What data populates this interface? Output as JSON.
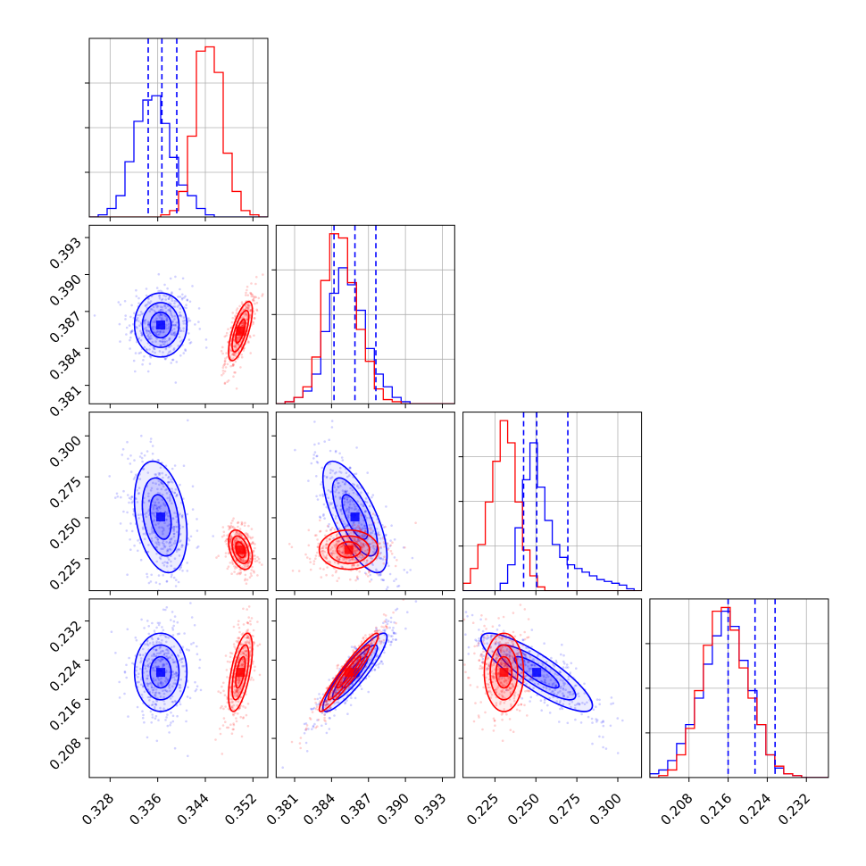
{
  "chart_data": {
    "type": "corner",
    "title": "",
    "grid": true,
    "parameters": [
      {
        "ticks": [
          0.328,
          0.336,
          0.344,
          0.352
        ],
        "tick_labels": [
          "0.328",
          "0.336",
          "0.344",
          "0.352"
        ],
        "range": [
          0.3245,
          0.3545
        ]
      },
      {
        "ticks": [
          0.381,
          0.384,
          0.387,
          0.39,
          0.393
        ],
        "tick_labels": [
          "0.381",
          "0.384",
          "0.387",
          "0.390",
          "0.393"
        ],
        "range": [
          0.3795,
          0.394
        ]
      },
      {
        "ticks": [
          0.225,
          0.25,
          0.275,
          0.3
        ],
        "tick_labels": [
          "0.225",
          "0.250",
          "0.275",
          "0.300"
        ],
        "range": [
          0.2055,
          0.3145
        ]
      },
      {
        "ticks": [
          0.208,
          0.216,
          0.224,
          0.232
        ],
        "tick_labels": [
          "0.208",
          "0.216",
          "0.224",
          "0.232"
        ],
        "range": [
          0.2,
          0.2365
        ]
      }
    ],
    "series": [
      {
        "color": "#0000ff",
        "means": [
          0.3365,
          0.3859,
          0.2505,
          0.2215
        ],
        "sds": [
          0.0022,
          0.0013,
          0.017,
          0.004
        ],
        "quantiles": [
          [
            0.3344,
            0.3367,
            0.3392
          ],
          [
            0.3842,
            0.3859,
            0.3876
          ],
          [
            0.2425,
            0.2505,
            0.2695
          ],
          [
            0.216,
            0.2215,
            0.2256
          ]
        ],
        "correlations": [
          [
            1,
            0,
            -0.3,
            0
          ],
          [
            0,
            1,
            -0.7,
            0.9
          ],
          [
            -0.3,
            -0.7,
            1,
            -0.85
          ],
          [
            0,
            0.9,
            -0.85,
            1
          ]
        ]
      },
      {
        "color": "#ff0000",
        "means": [
          0.3499,
          0.3854,
          0.2305,
          0.2215
        ],
        "sds": [
          0.001,
          0.0012,
          0.006,
          0.004
        ],
        "correlations": [
          [
            1,
            0.7,
            -0.4,
            0.6
          ],
          [
            0.7,
            1,
            0,
            0.95
          ],
          [
            -0.4,
            0,
            1,
            0
          ],
          [
            0.6,
            0.95,
            0,
            1
          ]
        ]
      }
    ],
    "histograms": [
      {
        "edges_range": [
          0.3245,
          0.3545
        ],
        "bins": 20,
        "counts": {
          "blue": [
            0,
            1,
            4,
            10,
            26,
            45,
            55,
            57,
            44,
            28,
            15,
            10,
            4,
            1,
            0,
            0,
            0,
            0,
            0,
            0
          ],
          "red": [
            0,
            0,
            0,
            0,
            0,
            0,
            0,
            0,
            1,
            3,
            12,
            38,
            78,
            80,
            68,
            30,
            12,
            3,
            1,
            0
          ]
        }
      },
      {
        "edges_range": [
          0.3795,
          0.394
        ],
        "bins": 20,
        "counts": {
          "blue": [
            0,
            1,
            3,
            6,
            14,
            34,
            52,
            64,
            56,
            44,
            26,
            14,
            8,
            3,
            1,
            0,
            0,
            0,
            0,
            0
          ],
          "red": [
            0,
            1,
            3,
            8,
            22,
            58,
            80,
            78,
            57,
            35,
            20,
            7,
            2,
            1,
            0,
            0,
            0,
            0,
            0,
            0
          ]
        }
      },
      {
        "edges_range": [
          0.2055,
          0.3145
        ],
        "bins": 24,
        "counts": {
          "blue": [
            0,
            0,
            0,
            0,
            0,
            4,
            14,
            34,
            60,
            80,
            56,
            38,
            25,
            18,
            14,
            12,
            10,
            8,
            6,
            5,
            4,
            3,
            1,
            0
          ],
          "red": [
            4,
            12,
            25,
            48,
            70,
            92,
            80,
            48,
            22,
            8,
            2,
            0,
            0,
            0,
            0,
            0,
            0,
            0,
            0,
            0,
            0,
            0,
            0,
            0
          ]
        }
      },
      {
        "edges_range": [
          0.2,
          0.2365
        ],
        "bins": 20,
        "counts": {
          "blue": [
            2,
            4,
            9,
            18,
            28,
            42,
            60,
            75,
            88,
            80,
            62,
            46,
            28,
            12,
            5,
            2,
            1,
            0,
            0,
            0
          ],
          "red": [
            0,
            1,
            4,
            12,
            26,
            46,
            70,
            88,
            90,
            78,
            58,
            42,
            28,
            12,
            6,
            2,
            1,
            0,
            0,
            0
          ]
        }
      }
    ]
  }
}
